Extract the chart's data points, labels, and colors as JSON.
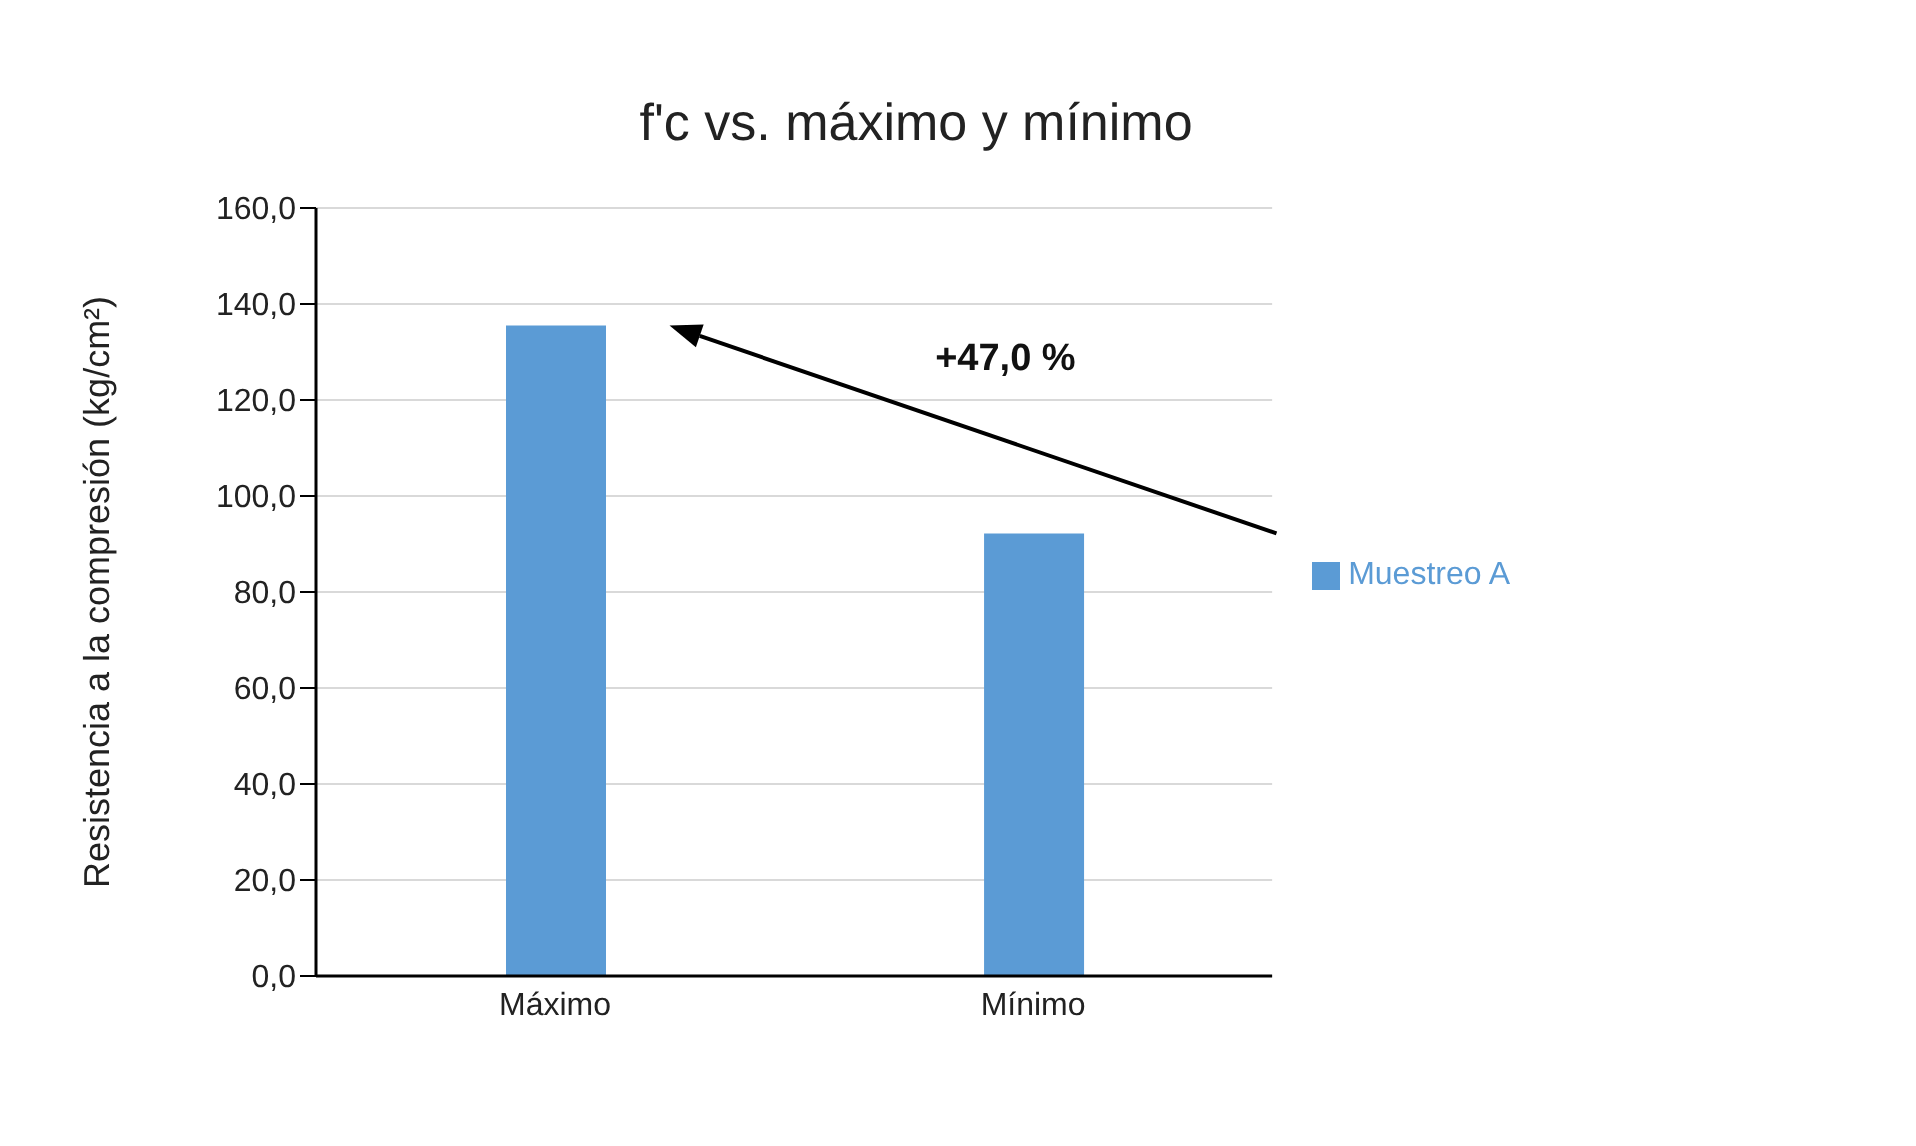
{
  "chart_data": {
    "type": "bar",
    "title": "f'c vs. máximo y mínimo",
    "ylabel": "Resistencia a la compresión (kg/cm²)",
    "categories": [
      "Máximo",
      "Mínimo"
    ],
    "series": [
      {
        "name": "Muestreo A",
        "color": "#5b9bd5",
        "values": [
          135.5,
          92.2
        ]
      }
    ],
    "ylim": [
      0,
      160
    ],
    "yticks": [
      {
        "value": 0,
        "label": "0,0"
      },
      {
        "value": 20,
        "label": "20,0"
      },
      {
        "value": 40,
        "label": "40,0"
      },
      {
        "value": 60,
        "label": "60,0"
      },
      {
        "value": 80,
        "label": "80,0"
      },
      {
        "value": 100,
        "label": "100,0"
      },
      {
        "value": 120,
        "label": "120,0"
      },
      {
        "value": 140,
        "label": "140,0"
      },
      {
        "value": 160,
        "label": "160,0"
      }
    ],
    "grid": "y",
    "legend": "right",
    "annotations": [
      "+47,0 %"
    ]
  }
}
